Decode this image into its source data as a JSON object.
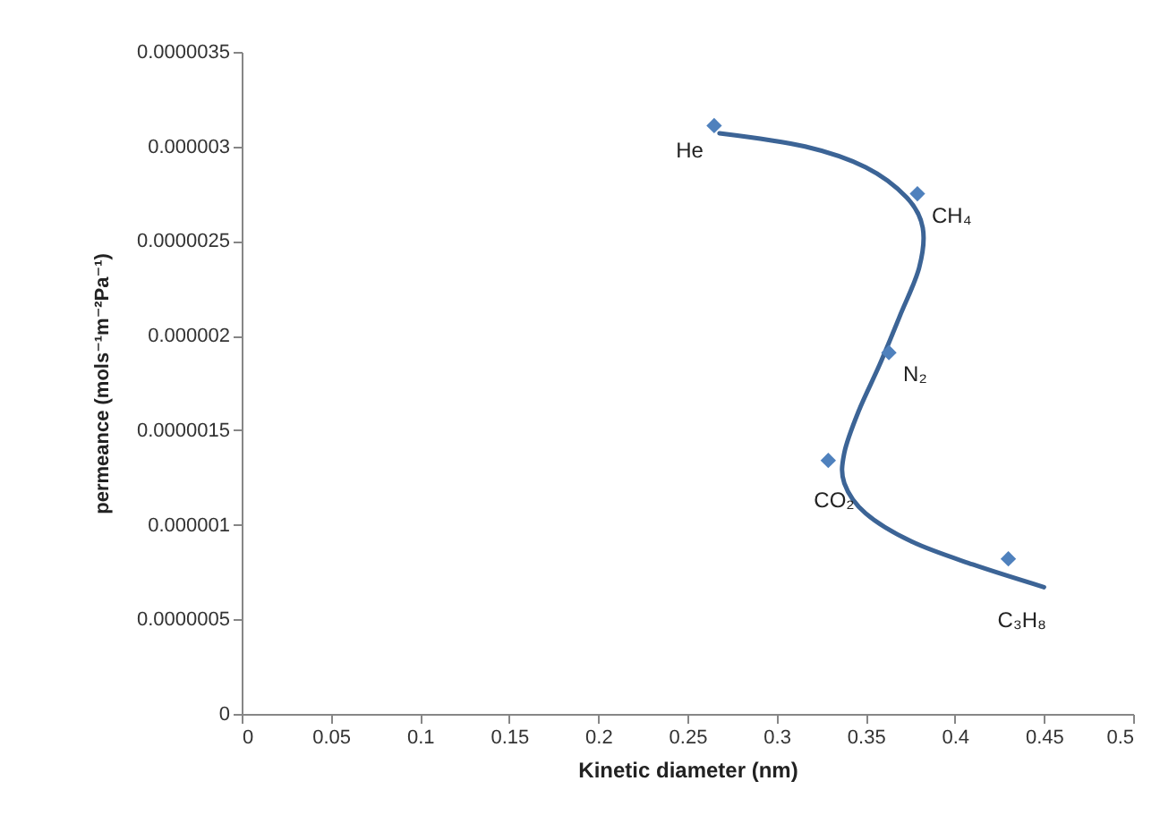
{
  "chart_data": {
    "type": "scatter",
    "xlabel": "Kinetic diameter (nm)",
    "ylabel": "permeance (mols⁻¹m⁻²Pa⁻¹)",
    "xlim": [
      0,
      0.5
    ],
    "xticks": [
      0,
      0.05,
      0.1,
      0.15,
      0.2,
      0.25,
      0.3,
      0.35,
      0.4,
      0.45,
      0.5
    ],
    "ylim": [
      0,
      3.5e-06
    ],
    "yticks": [
      0,
      {
        "value": 5e-07,
        "label": "0.0000005"
      },
      {
        "value": 1e-06,
        "label": "0.000001"
      },
      {
        "value": 1.5e-06,
        "label": "0.0000015"
      },
      {
        "value": 2e-06,
        "label": "0.000002"
      },
      {
        "value": 2.5e-06,
        "label": "0.0000025"
      },
      {
        "value": 3e-06,
        "label": "0.000003"
      },
      {
        "value": 3.5e-06,
        "label": "0.0000035"
      }
    ],
    "grid": false,
    "series": [
      {
        "type": "line",
        "color": "#3c6496",
        "line_style": "solid",
        "marker": "none",
        "x": [
          0.268,
          0.316,
          0.35,
          0.373,
          0.382,
          0.38,
          0.369,
          0.358,
          0.346,
          0.338,
          0.338,
          0.35,
          0.376,
          0.41,
          0.45
        ],
        "values": [
          3.07e-06,
          3e-06,
          2.89e-06,
          2.73e-06,
          2.57e-06,
          2.36e-06,
          2.1e-06,
          1.85e-06,
          1.6e-06,
          1.38e-06,
          1.22e-06,
          1.06e-06,
          9.1e-07,
          7.9e-07,
          6.7e-07
        ]
      },
      {
        "color": "#4f81bd",
        "marker": "diamond",
        "x": [
          0.265,
          0.379,
          0.363,
          0.329,
          0.43
        ],
        "values": [
          3.11e-06,
          2.75e-06,
          1.91e-06,
          1.34e-06,
          8.2e-07
        ]
      }
    ],
    "annotations": [
      {
        "text": "He",
        "x": 0.265,
        "y": 3.11e-06
      },
      {
        "text": "CH₄",
        "x": 0.379,
        "y": 2.75e-06
      },
      {
        "text": "N₂",
        "x": 0.363,
        "y": 1.91e-06
      },
      {
        "text": "CO₂",
        "x": 0.329,
        "y": 1.34e-06
      },
      {
        "text": "C₃H₈",
        "x": 0.43,
        "y": 8.2e-07
      }
    ]
  }
}
